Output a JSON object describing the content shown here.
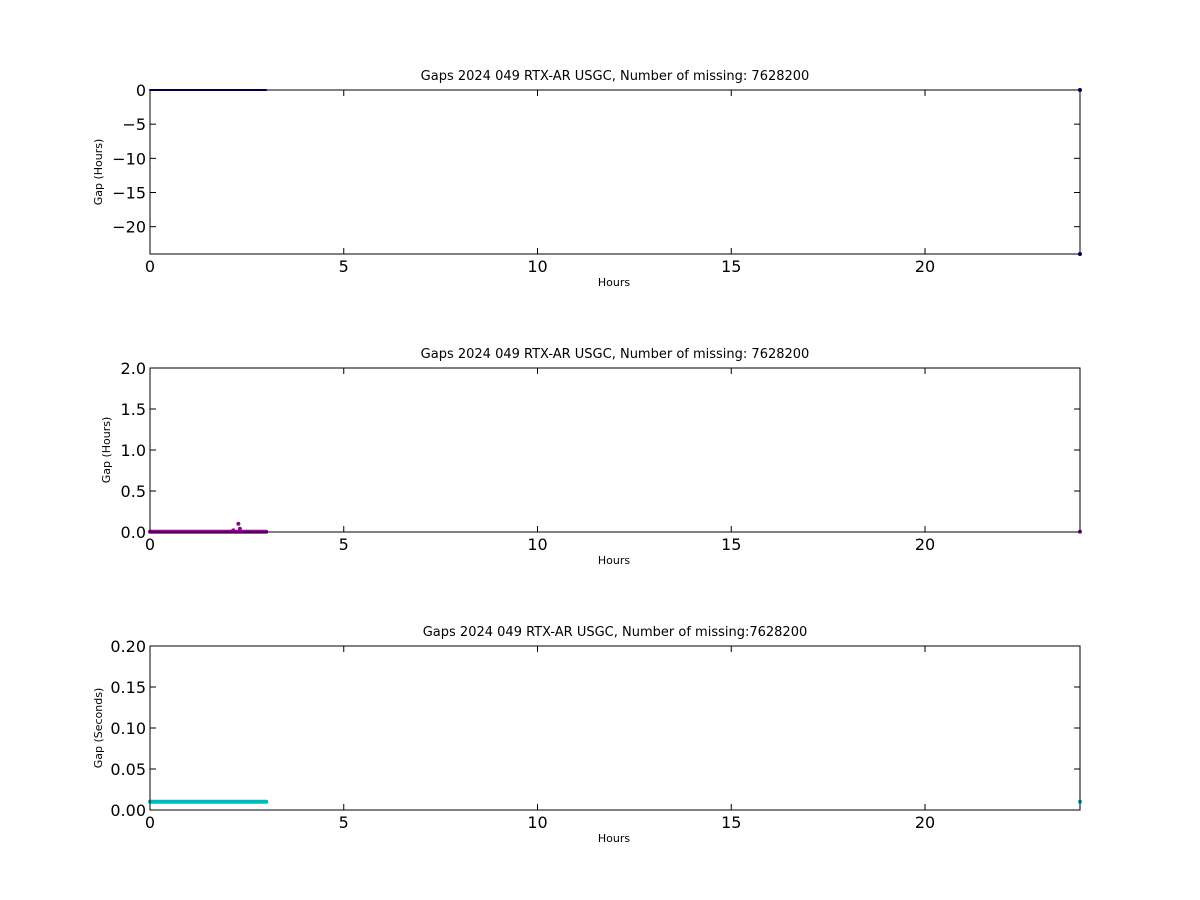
{
  "chart_data": [
    {
      "type": "scatter",
      "title": "Gaps 2024 049 RTX-AR  USGC, Number of missing: 7628200",
      "xlabel": "Hours",
      "ylabel": "Gap (Hours)",
      "xlim": [
        0,
        24
      ],
      "ylim": [
        -24.0,
        0
      ],
      "xticks": [
        0,
        5,
        10,
        15,
        20
      ],
      "yticks": [
        -20,
        -15,
        -10,
        -5,
        0
      ],
      "ytick_labels": [
        "−20",
        "−15",
        "−10",
        "−5",
        "0"
      ],
      "grid": false,
      "color": "#000080",
      "series": [
        {
          "segments": [
            {
              "x_start": 0.0,
              "x_end": 3.0,
              "y": 0.0
            }
          ],
          "points": [
            {
              "x": 24.0,
              "y": -24.0
            },
            {
              "x": 24.0,
              "y": 0.0
            }
          ]
        }
      ]
    },
    {
      "type": "scatter",
      "title": "Gaps 2024 049 RTX-AR  USGC, Number of missing: 7628200",
      "xlabel": "Hours",
      "ylabel": "Gap (Hours)",
      "xlim": [
        0,
        24
      ],
      "ylim": [
        0,
        2.0
      ],
      "xticks": [
        0,
        5,
        10,
        15,
        20
      ],
      "yticks": [
        0.0,
        0.5,
        1.0,
        1.5,
        2.0
      ],
      "ytick_labels": [
        "0.0",
        "0.5",
        "1.0",
        "1.5",
        "2.0"
      ],
      "grid": false,
      "color": "#990099",
      "series": [
        {
          "segments": [
            {
              "x_start": 0.0,
              "x_end": 3.0,
              "y": 0.003
            }
          ],
          "points": [
            {
              "x": 2.15,
              "y": 0.02
            },
            {
              "x": 2.28,
              "y": 0.1
            },
            {
              "x": 2.32,
              "y": 0.04
            },
            {
              "x": 24.0,
              "y": 0.003
            }
          ]
        }
      ]
    },
    {
      "type": "scatter",
      "title": "Gaps 2024 049 RTX-AR  USGC, Number of missing:7628200",
      "xlabel": "Hours",
      "ylabel": "Gap (Seconds)",
      "xlim": [
        0,
        24
      ],
      "ylim": [
        0,
        0.2
      ],
      "xticks": [
        0,
        5,
        10,
        15,
        20
      ],
      "yticks": [
        0.0,
        0.05,
        0.1,
        0.15,
        0.2
      ],
      "ytick_labels": [
        "0.00",
        "0.05",
        "0.10",
        "0.15",
        "0.20"
      ],
      "grid": false,
      "color": "#00bbbb",
      "series": [
        {
          "segments": [
            {
              "x_start": 0.0,
              "x_end": 3.0,
              "y": 0.01
            }
          ],
          "points": [
            {
              "x": 24.0,
              "y": 0.01
            }
          ]
        }
      ]
    }
  ]
}
